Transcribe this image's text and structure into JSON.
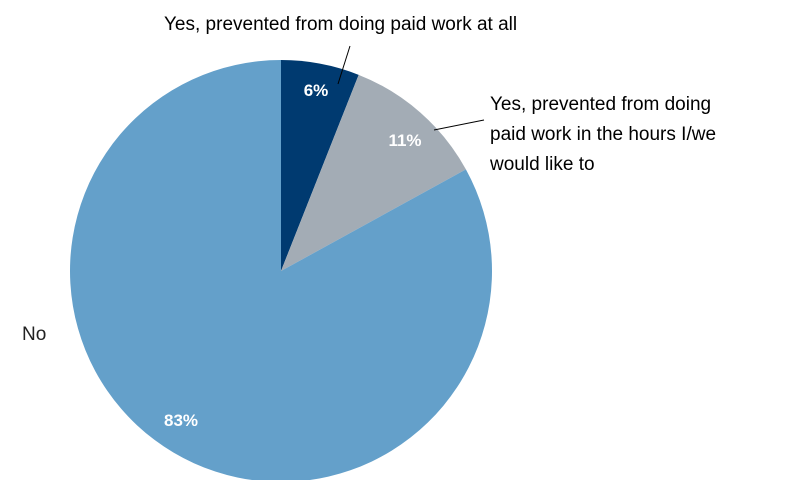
{
  "chart_data": {
    "type": "pie",
    "start_angle_deg": 0,
    "direction": "clockwise",
    "slices": [
      {
        "label_lines": [
          "Yes, prevented from doing paid work at all"
        ],
        "value": 6,
        "value_label": "6%",
        "color": "#003a70"
      },
      {
        "label_lines": [
          "Yes, prevented from doing",
          "paid work in the hours I/we",
          "would like to"
        ],
        "value": 11,
        "value_label": "11%",
        "color": "#a3acb5"
      },
      {
        "label_lines": [
          "No"
        ],
        "value": 83,
        "value_label": "83%",
        "color": "#64a0ca"
      }
    ]
  }
}
